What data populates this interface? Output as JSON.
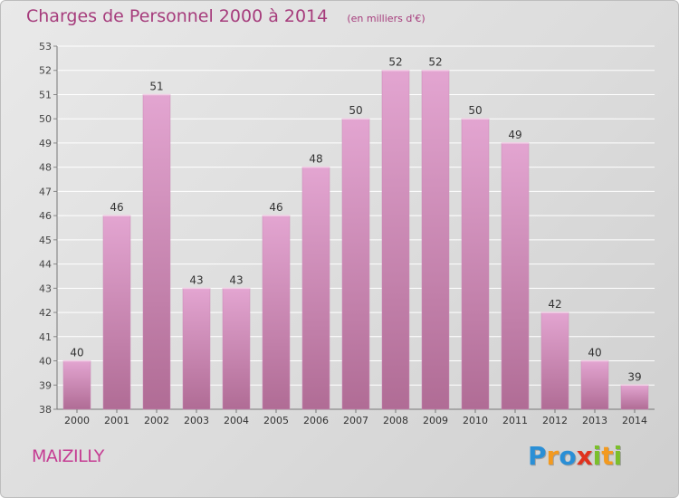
{
  "title": "Charges de Personnel 2000 à 2014",
  "subtitle": "(en milliers d'€)",
  "commune": "MAIZILLY",
  "logo": {
    "text": "Proxiti",
    "letters": [
      {
        "ch": "P",
        "color": "#2a8fd6"
      },
      {
        "ch": "r",
        "color": "#f39a1f"
      },
      {
        "ch": "o",
        "color": "#2a8fd6"
      },
      {
        "ch": "x",
        "color": "#e0321e"
      },
      {
        "ch": "i",
        "color": "#7bbf2a"
      },
      {
        "ch": "t",
        "color": "#f39a1f"
      },
      {
        "ch": "i",
        "color": "#7bbf2a"
      }
    ]
  },
  "colors": {
    "bar_top": "#e3a5d1",
    "bar_bottom": "#b06c95",
    "title": "#a63c7c"
  },
  "chart_data": {
    "type": "bar",
    "categories": [
      "2000",
      "2001",
      "2002",
      "2003",
      "2004",
      "2005",
      "2006",
      "2007",
      "2008",
      "2009",
      "2010",
      "2011",
      "2012",
      "2013",
      "2014"
    ],
    "values": [
      40,
      46,
      51,
      43,
      43,
      46,
      48,
      50,
      52,
      52,
      50,
      49,
      42,
      40,
      39
    ],
    "ylim": [
      38,
      53
    ],
    "yticks": [
      38,
      39,
      40,
      41,
      42,
      43,
      44,
      45,
      46,
      47,
      48,
      49,
      50,
      51,
      52,
      53
    ],
    "grid": true,
    "xlabel": "",
    "ylabel": ""
  }
}
